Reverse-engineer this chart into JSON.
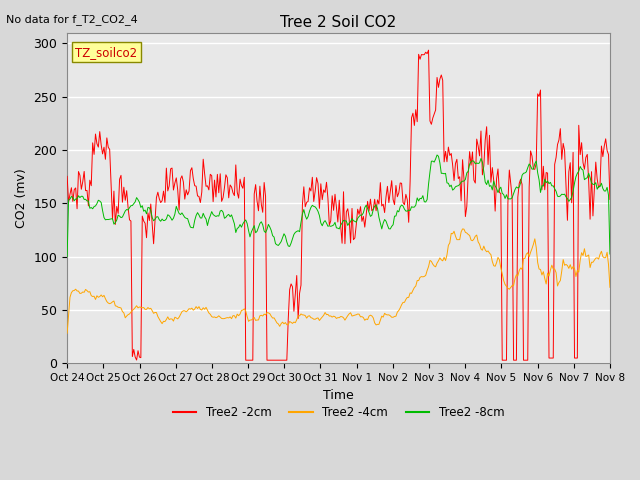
{
  "title": "Tree 2 Soil CO2",
  "xlabel": "Time",
  "ylabel": "CO2 (mv)",
  "top_left_text": "No data for f_T2_CO2_4",
  "legend_label": "TZ_soilco2",
  "ylim": [
    0,
    310
  ],
  "yticks": [
    0,
    50,
    100,
    150,
    200,
    250,
    300
  ],
  "xtick_labels": [
    "Oct 24",
    "Oct 25",
    "Oct 26",
    "Oct 27",
    "Oct 28",
    "Oct 29",
    "Oct 30",
    "Oct 31",
    "Nov 1",
    "Nov 2",
    "Nov 3",
    "Nov 4",
    "Nov 5",
    "Nov 6",
    "Nov 7",
    "Nov 8"
  ],
  "series": {
    "Tree2 -2cm": {
      "color": "#FF0000",
      "linewidth": 0.7
    },
    "Tree2 -4cm": {
      "color": "#FFA500",
      "linewidth": 0.7
    },
    "Tree2 -8cm": {
      "color": "#00BB00",
      "linewidth": 0.7
    }
  },
  "bg_color": "#D8D8D8",
  "plot_bg_color": "#E8E8E8",
  "grid_color": "#FFFFFF",
  "annotation_box_facecolor": "#FFFF99",
  "annotation_text_color": "#CC0000",
  "annotation_box_edgecolor": "#888800"
}
